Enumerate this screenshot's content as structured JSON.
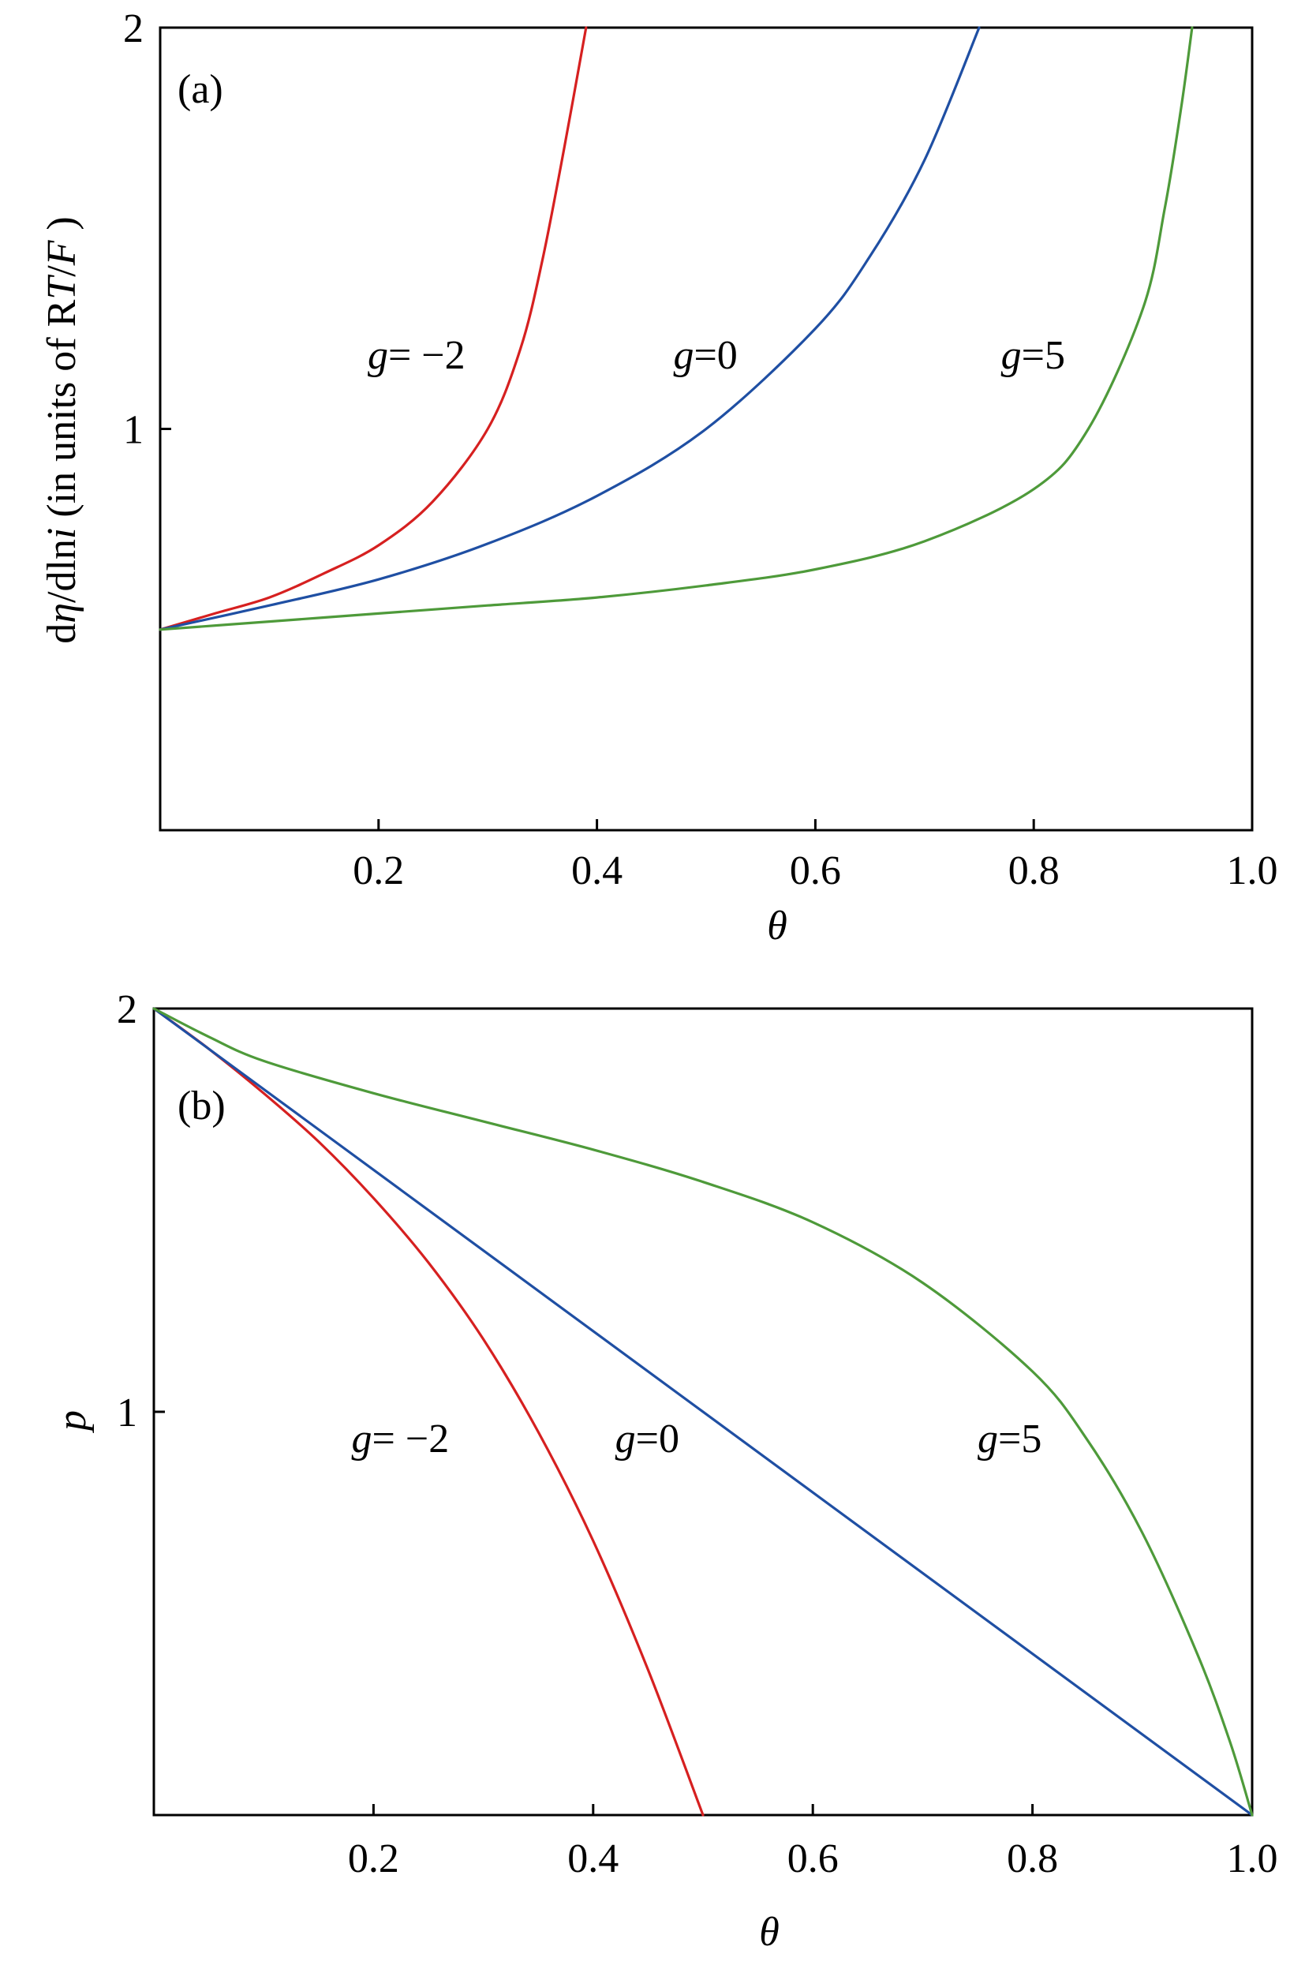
{
  "chart_data": [
    {
      "panel": "(a)",
      "type": "line",
      "xlabel": "θ",
      "ylabel": "dη/dlni (in units of RT/F )",
      "xlim": [
        0.0,
        1.0
      ],
      "ylim": [
        0.0,
        2.0
      ],
      "x_ticks": [
        0.2,
        0.4,
        0.6,
        0.8,
        1.0
      ],
      "x_tick_labels": [
        "0.2",
        "0.4",
        "0.6",
        "0.8",
        "1.0"
      ],
      "y_ticks": [
        1,
        2
      ],
      "y_tick_labels": [
        "1",
        "2"
      ],
      "grid": false,
      "series": [
        {
          "name": "g= −2",
          "color": "#d62020",
          "x": [
            0.0,
            0.05,
            0.1,
            0.15,
            0.2,
            0.25,
            0.3,
            0.33,
            0.35,
            0.37,
            0.39
          ],
          "y": [
            0.5,
            0.54,
            0.58,
            0.64,
            0.71,
            0.82,
            1.0,
            1.2,
            1.42,
            1.7,
            2.0
          ]
        },
        {
          "name": "g=0",
          "color": "#1f4fa3",
          "x": [
            0.0,
            0.1,
            0.2,
            0.3,
            0.4,
            0.5,
            0.6,
            0.65,
            0.7,
            0.75
          ],
          "y": [
            0.5,
            0.56,
            0.625,
            0.714,
            0.833,
            1.0,
            1.25,
            1.43,
            1.67,
            2.0
          ]
        },
        {
          "name": "g=5",
          "color": "#4e9a3a",
          "x": [
            0.0,
            0.1,
            0.2,
            0.3,
            0.4,
            0.5,
            0.6,
            0.7,
            0.8,
            0.85,
            0.9,
            0.92,
            0.935,
            0.945
          ],
          "y": [
            0.5,
            0.52,
            0.54,
            0.56,
            0.58,
            0.61,
            0.65,
            0.72,
            0.85,
            1.0,
            1.3,
            1.55,
            1.8,
            2.0
          ]
        }
      ],
      "annotations": [
        {
          "text_italic": "g",
          "text": "= −2",
          "x": 0.19,
          "y": 1.15
        },
        {
          "text_italic": "g",
          "text": "=0",
          "x": 0.47,
          "y": 1.15
        },
        {
          "text_italic": "g",
          "text": "=5",
          "x": 0.77,
          "y": 1.15
        }
      ]
    },
    {
      "panel": "(b)",
      "type": "line",
      "xlabel": "θ",
      "ylabel": "p",
      "xlim": [
        0.0,
        1.0
      ],
      "ylim": [
        0.0,
        2.0
      ],
      "x_ticks": [
        0.2,
        0.4,
        0.6,
        0.8,
        1.0
      ],
      "x_tick_labels": [
        "0.2",
        "0.4",
        "0.6",
        "0.8",
        "1.0"
      ],
      "y_ticks": [
        1,
        2
      ],
      "y_tick_labels": [
        "1",
        "2"
      ],
      "grid": false,
      "series": [
        {
          "name": "g= −2",
          "color": "#d62020",
          "x": [
            0.0,
            0.05,
            0.1,
            0.15,
            0.2,
            0.25,
            0.3,
            0.35,
            0.4,
            0.45,
            0.5
          ],
          "y": [
            2.0,
            1.9,
            1.79,
            1.67,
            1.53,
            1.37,
            1.18,
            0.95,
            0.68,
            0.36,
            0.0
          ]
        },
        {
          "name": "g=0",
          "color": "#1f4fa3",
          "x": [
            0.0,
            1.0
          ],
          "y": [
            2.0,
            0.0
          ]
        },
        {
          "name": "g=5",
          "color": "#4e9a3a",
          "x": [
            0.0,
            0.05,
            0.1,
            0.2,
            0.3,
            0.4,
            0.5,
            0.6,
            0.7,
            0.8,
            0.85,
            0.9,
            0.95,
            0.98,
            1.0
          ],
          "y": [
            2.0,
            1.93,
            1.87,
            1.79,
            1.72,
            1.65,
            1.57,
            1.47,
            1.32,
            1.1,
            0.93,
            0.7,
            0.4,
            0.18,
            0.0
          ]
        }
      ],
      "annotations": [
        {
          "text_italic": "g",
          "text": "= −2",
          "x": 0.18,
          "y": 0.9
        },
        {
          "text_italic": "g",
          "text": "=0",
          "x": 0.42,
          "y": 0.9
        },
        {
          "text_italic": "g",
          "text": "=5",
          "x": 0.75,
          "y": 0.9
        }
      ]
    }
  ]
}
